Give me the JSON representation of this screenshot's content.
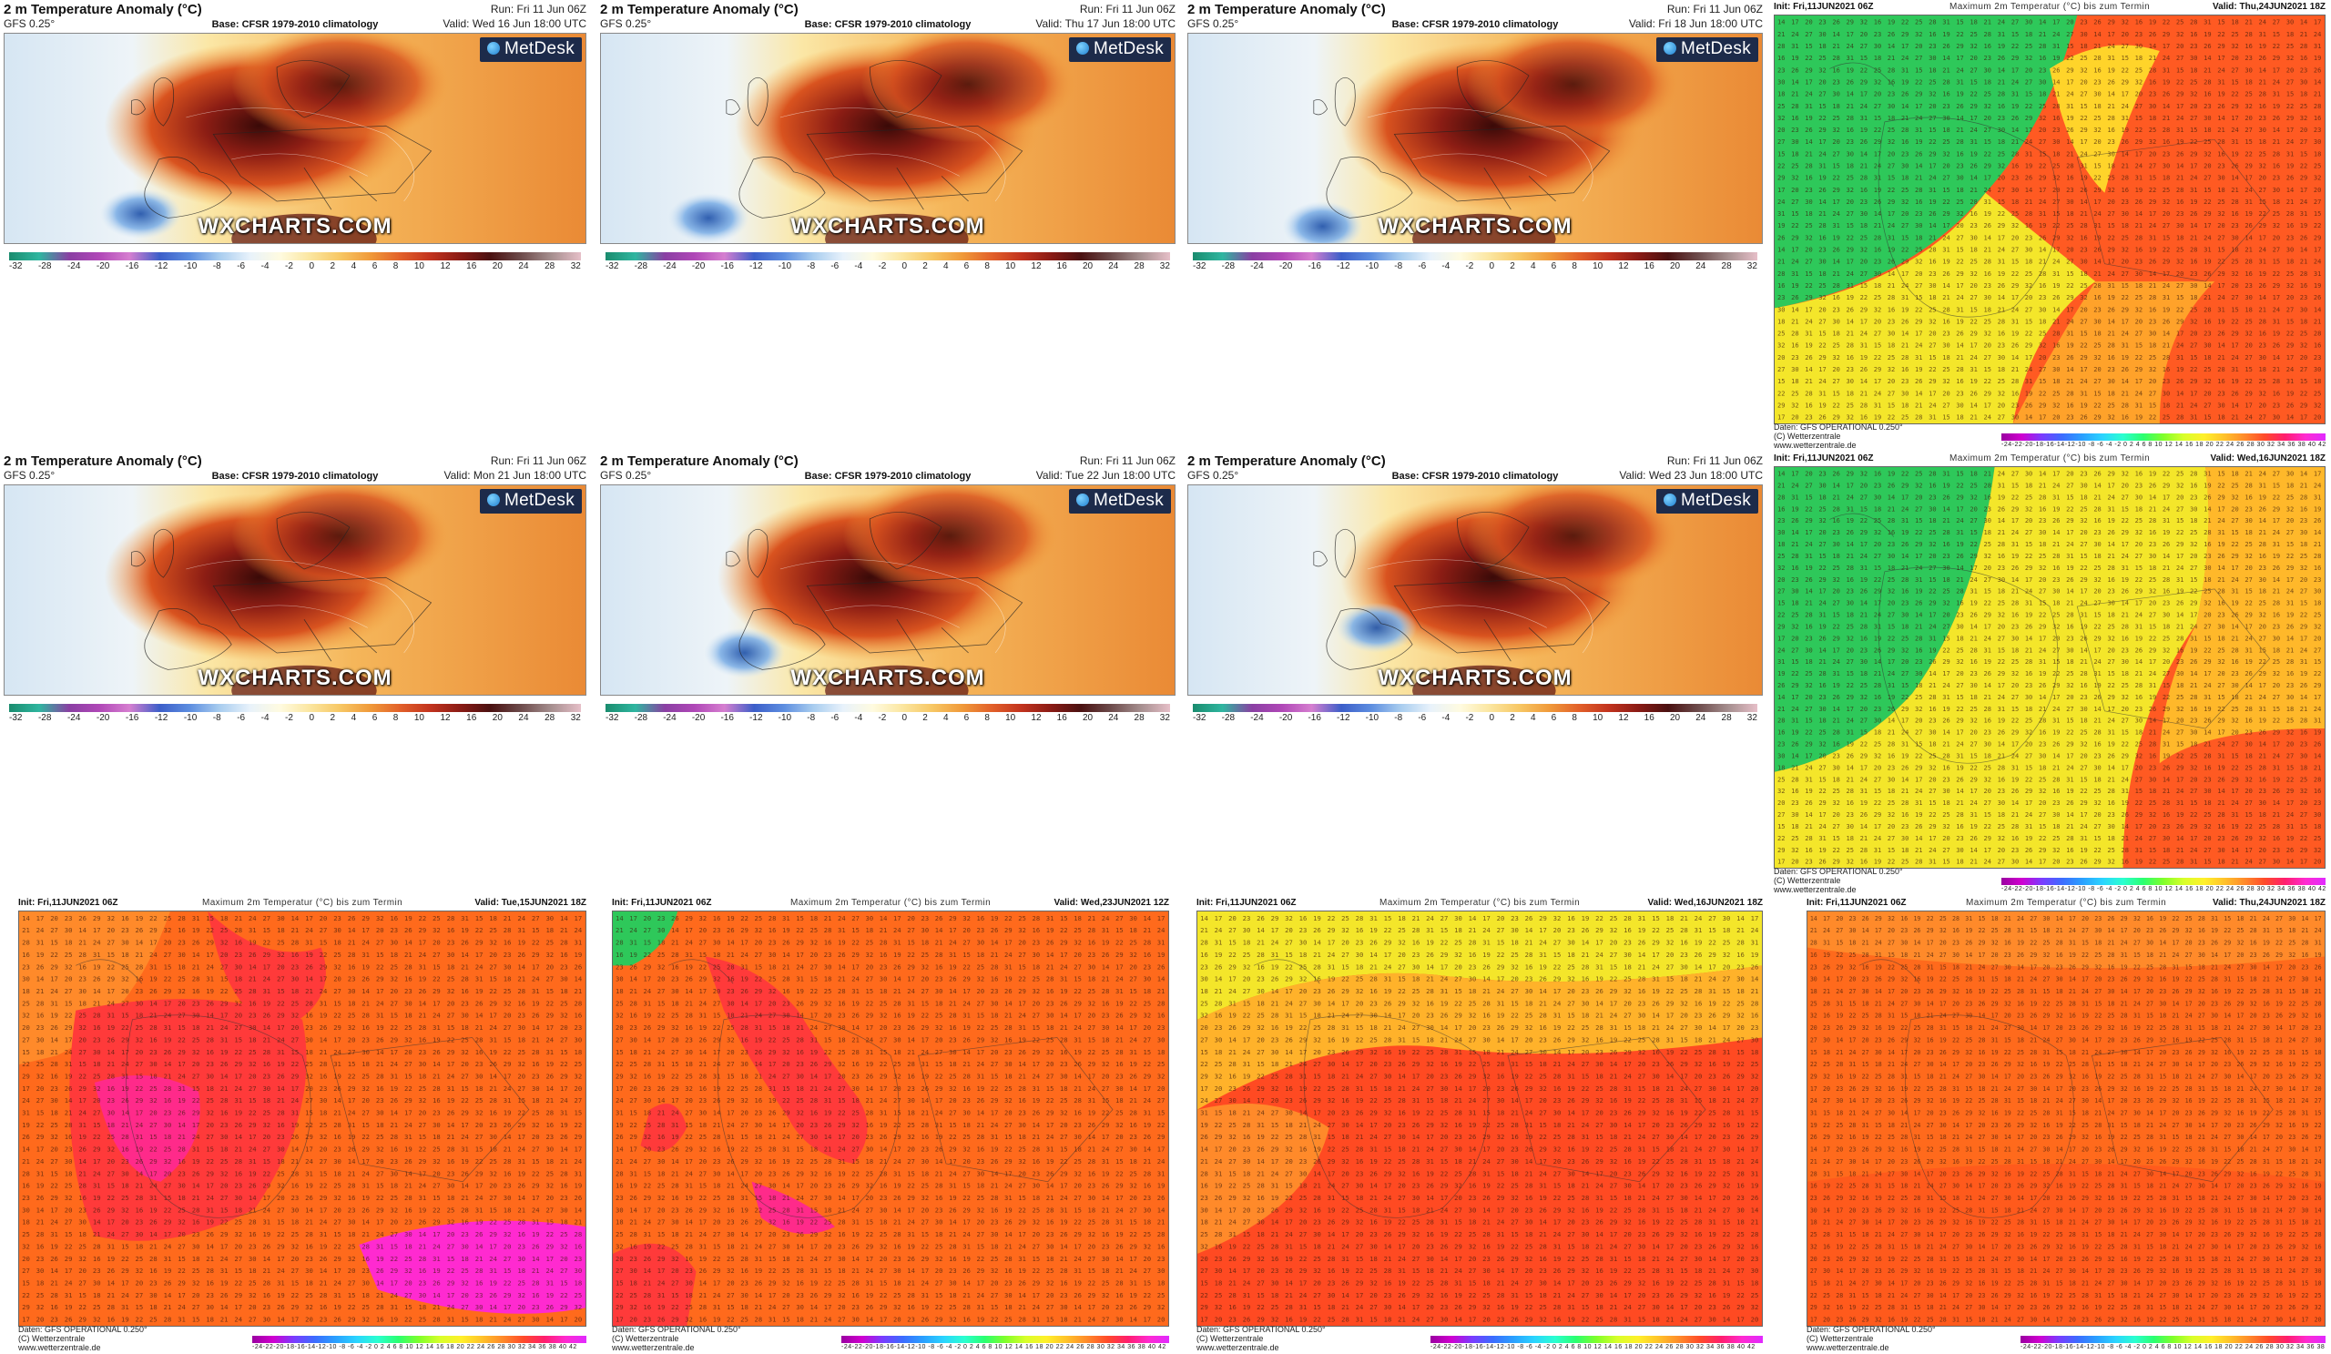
{
  "wx_panels": [
    {
      "title": "2 m Temperature Anomaly (°C)",
      "model": "GFS 0.25°",
      "base": "Base: CFSR 1979-2010 climatology",
      "run": "Run: Fri 11 Jun 06Z",
      "valid": "Valid: Wed 16 Jun 18:00 UTC",
      "logo": "MetDesk",
      "watermark": "WXCHARTS.COM"
    },
    {
      "title": "2 m Temperature Anomaly (°C)",
      "model": "GFS 0.25°",
      "base": "Base: CFSR 1979-2010 climatology",
      "run": "Run: Fri 11 Jun 06Z",
      "valid": "Valid: Thu 17 Jun 18:00 UTC",
      "logo": "MetDesk",
      "watermark": "WXCHARTS.COM"
    },
    {
      "title": "2 m Temperature Anomaly (°C)",
      "model": "GFS 0.25°",
      "base": "Base: CFSR 1979-2010 climatology",
      "run": "Run: Fri 11 Jun 06Z",
      "valid": "Valid: Fri 18 Jun 18:00 UTC",
      "logo": "MetDesk",
      "watermark": "WXCHARTS.COM"
    },
    {
      "title": "2 m Temperature Anomaly (°C)",
      "model": "GFS 0.25°",
      "base": "Base: CFSR 1979-2010 climatology",
      "run": "Run: Fri 11 Jun 06Z",
      "valid": "Valid: Mon 21 Jun 18:00 UTC",
      "logo": "MetDesk",
      "watermark": "WXCHARTS.COM"
    },
    {
      "title": "2 m Temperature Anomaly (°C)",
      "model": "GFS 0.25°",
      "base": "Base: CFSR 1979-2010 climatology",
      "run": "Run: Fri 11 Jun 06Z",
      "valid": "Valid: Tue 22 Jun 18:00 UTC",
      "logo": "MetDesk",
      "watermark": "WXCHARTS.COM"
    },
    {
      "title": "2 m Temperature Anomaly (°C)",
      "model": "GFS 0.25°",
      "base": "Base: CFSR 1979-2010 climatology",
      "run": "Run: Fri 11 Jun 06Z",
      "valid": "Valid: Wed 23 Jun 18:00 UTC",
      "logo": "MetDesk",
      "watermark": "WXCHARTS.COM"
    }
  ],
  "wx_scale_ticks": [
    "-32",
    "-28",
    "-24",
    "-20",
    "-16",
    "-12",
    "-10",
    "-8",
    "-6",
    "-4",
    "-2",
    "0",
    "2",
    "4",
    "6",
    "8",
    "10",
    "12",
    "16",
    "20",
    "24",
    "28",
    "32"
  ],
  "wz_panels": [
    {
      "init": "Init: Fri,11JUN2021 06Z",
      "field": "Maximum 2m Temperatur (°C) bis zum Termin",
      "valid": "Valid: Thu,24JUN2021 18Z",
      "foot1": "Daten: GFS OPERATIONAL 0.250°",
      "foot2": "(C) Wetterzentrale",
      "foot3": "www.wetterzentrale.de",
      "scheme": "north"
    },
    {
      "init": "Init: Fri,11JUN2021 06Z",
      "field": "Maximum 2m Temperatur (°C) bis zum Termin",
      "valid": "Valid: Wed,16JUN2021 18Z",
      "foot1": "Daten: GFS OPERATIONAL 0.250°",
      "foot2": "(C) Wetterzentrale",
      "foot3": "www.wetterzentrale.de",
      "scheme": "north2"
    },
    {
      "init": "Init: Fri,11JUN2021 06Z",
      "field": "Maximum 2m Temperatur (°C) bis zum Termin",
      "valid": "Valid: Tue,15JUN2021 18Z",
      "foot1": "Daten: GFS OPERATIONAL 0.250°",
      "foot2": "(C) Wetterzentrale",
      "foot3": "www.wetterzentrale.de",
      "scheme": "iberia"
    },
    {
      "init": "Init: Fri,11JUN2021 06Z",
      "field": "Maximum 2m Temperatur (°C) bis zum Termin",
      "valid": "Valid: Wed,23JUN2021 12Z",
      "foot1": "Daten: GFS OPERATIONAL 0.250°",
      "foot2": "(C) Wetterzentrale",
      "foot3": "www.wetterzentrale.de",
      "scheme": "italy"
    },
    {
      "init": "Init: Fri,11JUN2021 06Z",
      "field": "Maximum 2m Temperatur (°C) bis zum Termin",
      "valid": "Valid: Wed,16JUN2021 18Z",
      "foot1": "Daten: GFS OPERATIONAL 0.250°",
      "foot2": "(C) Wetterzentrale",
      "foot3": "www.wetterzentrale.de",
      "scheme": "central"
    },
    {
      "init": "Init: Fri,11JUN2021 06Z",
      "field": "Maximum 2m Temperatur (°C) bis zum Termin",
      "valid": "Valid: Thu,24JUN2021 18Z",
      "foot1": "Daten: GFS OPERATIONAL 0.250°",
      "foot2": "(C) Wetterzentrale",
      "foot3": "www.wetterzentrale.de",
      "scheme": "east"
    }
  ],
  "wz_scale_ticks": "-24-22-20-18-16-14-12-10 -8 -6 -4 -2  0  2  4  6  8 10 12 14 16 18 20 22 24 26 28 30 32 34 36 38 40 42",
  "colors": {
    "ocean": "#dfe9f2",
    "land_warm": "#e9742e",
    "land_hot": "#8c1d14",
    "cool": "#3a73c4",
    "wz_orange": "#ff6a1c",
    "wz_red": "#ff3a2a",
    "wz_green": "#2ec85a",
    "wz_yellow": "#f4e62a"
  }
}
